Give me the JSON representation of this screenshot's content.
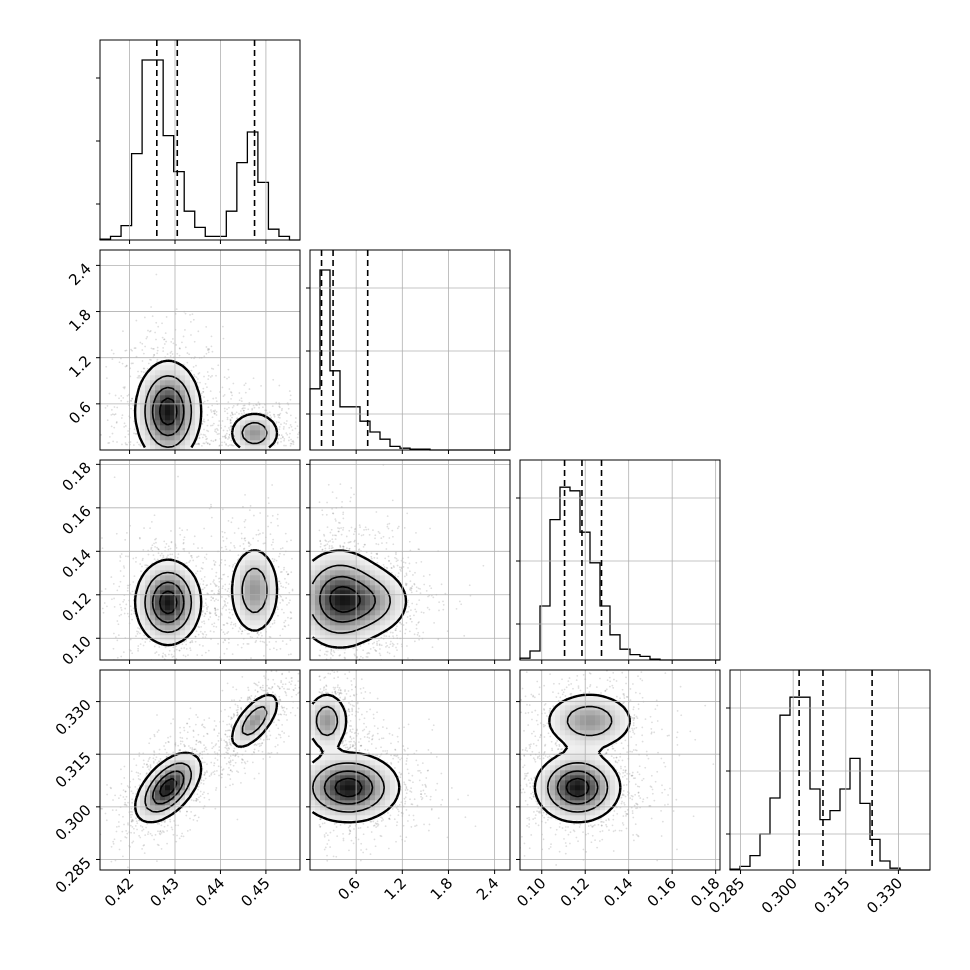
{
  "chart_data": {
    "type": "corner",
    "parameters": [
      {
        "index": 0,
        "range": [
          0.4135,
          0.4575
        ],
        "ticks": [
          "0.42",
          "0.43",
          "0.44",
          "0.45"
        ],
        "tick_values": [
          0.42,
          0.43,
          0.44,
          0.45
        ],
        "quantiles": [
          0.426,
          0.4305,
          0.4475
        ],
        "hist": [
          0.005,
          0.02,
          0.08,
          0.48,
          1.0,
          1.0,
          0.58,
          0.38,
          0.16,
          0.07,
          0.02,
          0.02,
          0.16,
          0.43,
          0.6,
          0.32,
          0.06,
          0.02,
          0.0
        ]
      },
      {
        "index": 1,
        "range": [
          0.0,
          2.6
        ],
        "ticks": [
          "0.6",
          "1.2",
          "1.8",
          "2.4"
        ],
        "tick_values": [
          0.6,
          1.2,
          1.8,
          2.4
        ],
        "quantiles": [
          0.15,
          0.3,
          0.75
        ],
        "hist": [
          0.34,
          1.0,
          0.44,
          0.24,
          0.24,
          0.16,
          0.1,
          0.06,
          0.02,
          0.01,
          0.005,
          0.005,
          0.0,
          0.0,
          0.0,
          0.0,
          0.0,
          0.0,
          0.0,
          0.0
        ]
      },
      {
        "index": 2,
        "range": [
          0.09,
          0.182
        ],
        "ticks": [
          "0.10",
          "0.12",
          "0.14",
          "0.16",
          "0.18"
        ],
        "tick_values": [
          0.1,
          0.12,
          0.14,
          0.16,
          0.18
        ],
        "quantiles": [
          0.1105,
          0.1185,
          0.1275
        ],
        "hist": [
          0.01,
          0.05,
          0.3,
          0.78,
          0.96,
          0.94,
          0.71,
          0.54,
          0.3,
          0.14,
          0.06,
          0.03,
          0.02,
          0.005,
          0.0,
          0.0,
          0.0,
          0.0,
          0.0,
          0.0
        ]
      },
      {
        "index": 3,
        "range": [
          0.282,
          0.339
        ],
        "ticks": [
          "0.285",
          "0.300",
          "0.315",
          "0.330"
        ],
        "tick_values": [
          0.285,
          0.3,
          0.315,
          0.33
        ],
        "quantiles": [
          0.3017,
          0.3085,
          0.3225
        ],
        "hist": [
          0.005,
          0.02,
          0.08,
          0.2,
          0.4,
          0.86,
          0.96,
          0.96,
          0.45,
          0.28,
          0.33,
          0.45,
          0.62,
          0.37,
          0.17,
          0.05,
          0.01,
          0.0,
          0.0,
          0.0
        ]
      }
    ],
    "pairs": [
      {
        "x": 0,
        "y": 1,
        "modes": [
          {
            "cx": 0.4285,
            "cy": 0.5,
            "sx": 0.0035,
            "sy": 0.32,
            "w": 0.64,
            "floor": 0.0
          },
          {
            "cx": 0.4475,
            "cy": 0.22,
            "sx": 0.0028,
            "sy": 0.14,
            "w": 0.36,
            "floor": 0.0
          }
        ]
      },
      {
        "x": 0,
        "y": 2,
        "modes": [
          {
            "cx": 0.4285,
            "cy": 0.1165,
            "sx": 0.0035,
            "sy": 0.0095,
            "w": 0.64
          },
          {
            "cx": 0.4475,
            "cy": 0.122,
            "sx": 0.0028,
            "sy": 0.0105,
            "w": 0.36
          }
        ]
      },
      {
        "x": 0,
        "y": 3,
        "modes": [
          {
            "cx": 0.4285,
            "cy": 0.3055,
            "sx": 0.0035,
            "sy": 0.0048,
            "w": 0.64,
            "rho": 0.55
          },
          {
            "cx": 0.4475,
            "cy": 0.3245,
            "sx": 0.0028,
            "sy": 0.0042,
            "w": 0.36,
            "rho": 0.65
          }
        ]
      },
      {
        "x": 1,
        "y": 2,
        "modes": [
          {
            "cx": 0.38,
            "cy": 0.118,
            "sx": 0.28,
            "sy": 0.011,
            "w": 0.7,
            "floor": 0.0
          },
          {
            "cx": 0.85,
            "cy": 0.117,
            "sx": 0.25,
            "sy": 0.008,
            "w": 0.3,
            "floor": 0.0
          }
        ]
      },
      {
        "x": 1,
        "y": 3,
        "modes": [
          {
            "cx": 0.22,
            "cy": 0.3245,
            "sx": 0.14,
            "sy": 0.0042,
            "w": 0.36,
            "floor": 0.0
          },
          {
            "cx": 0.5,
            "cy": 0.3055,
            "sx": 0.32,
            "sy": 0.0048,
            "w": 0.64,
            "floor": 0.0
          }
        ]
      },
      {
        "x": 2,
        "y": 3,
        "modes": [
          {
            "cx": 0.1165,
            "cy": 0.3055,
            "sx": 0.0095,
            "sy": 0.0048,
            "w": 0.64
          },
          {
            "cx": 0.122,
            "cy": 0.3245,
            "sx": 0.0105,
            "sy": 0.0042,
            "w": 0.36
          }
        ]
      }
    ],
    "grid": true,
    "colors": {
      "line": "#000000",
      "grid": "#b0b0b0",
      "sample": "#000000",
      "density": "#000000"
    }
  }
}
